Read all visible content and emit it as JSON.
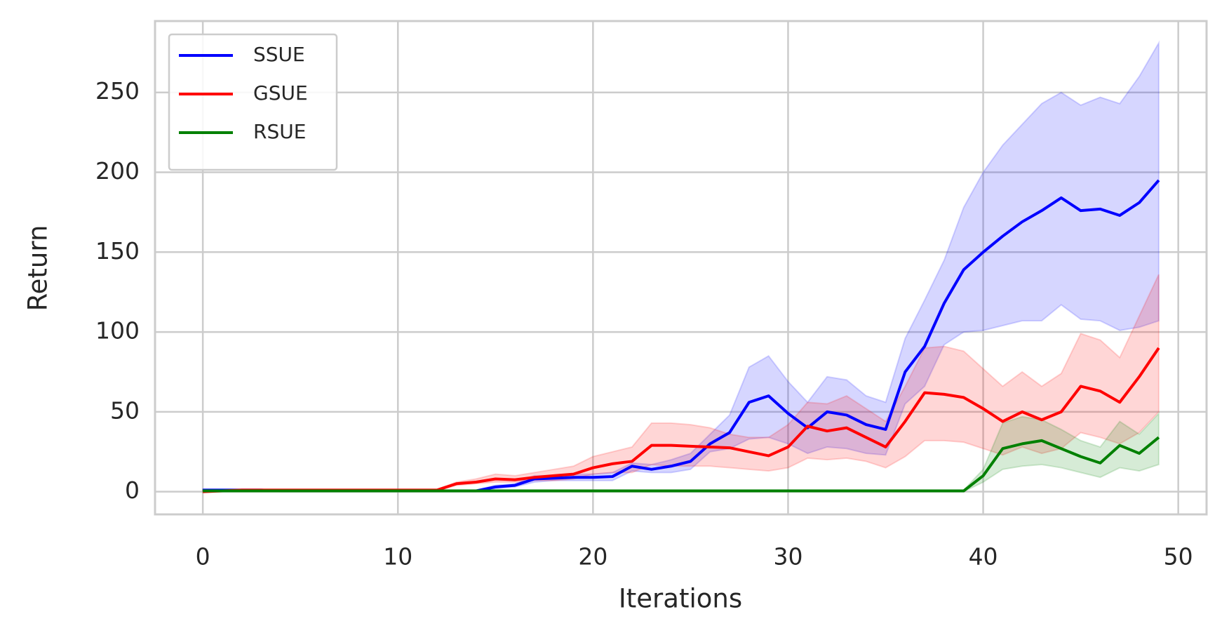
{
  "chart_data": {
    "type": "line",
    "xlabel": "Iterations",
    "ylabel": "Return",
    "x": [
      0,
      1,
      2,
      3,
      4,
      5,
      6,
      7,
      8,
      9,
      10,
      11,
      12,
      13,
      14,
      15,
      16,
      17,
      18,
      19,
      20,
      21,
      22,
      23,
      24,
      25,
      26,
      27,
      28,
      29,
      30,
      31,
      32,
      33,
      34,
      35,
      36,
      37,
      38,
      39,
      40,
      41,
      42,
      43,
      44,
      45,
      46,
      47,
      48,
      49
    ],
    "series": [
      {
        "name": "SSUE",
        "color": "#0000ff",
        "values": [
          1,
          1,
          1,
          1,
          0.5,
          0.5,
          0.5,
          0.5,
          0.5,
          0.5,
          0.5,
          0.5,
          0.5,
          0.5,
          0.5,
          3,
          4,
          8,
          8.5,
          9,
          9,
          9.5,
          16,
          14,
          16,
          19,
          30,
          37,
          56,
          60,
          49,
          40,
          50,
          48,
          42,
          39,
          75,
          91,
          118,
          139,
          150,
          160,
          169,
          176,
          184,
          176,
          177,
          173,
          181,
          195
        ],
        "upper": [
          1.5,
          1.5,
          1.5,
          1.5,
          1,
          1,
          1,
          1,
          1,
          1,
          1,
          1,
          1,
          1,
          1,
          4,
          5,
          10,
          10,
          11,
          11,
          12,
          18,
          17,
          20,
          24,
          36,
          48,
          78,
          85,
          69,
          56,
          72,
          70,
          60,
          56,
          96,
          120,
          145,
          178,
          200,
          217,
          230,
          243,
          250,
          242,
          247,
          243,
          260,
          281
        ],
        "lower": [
          0.5,
          0.5,
          0.5,
          0.5,
          0,
          0,
          0,
          0,
          0,
          0,
          0,
          0,
          0,
          0,
          0,
          2,
          3,
          6,
          7,
          7,
          7,
          7,
          13,
          12,
          12,
          14,
          25,
          27,
          33,
          34,
          30,
          24,
          28,
          27,
          24,
          23,
          55,
          66,
          92,
          100,
          101,
          104,
          107,
          107,
          117,
          108,
          107,
          101,
          103,
          107
        ]
      },
      {
        "name": "GSUE",
        "color": "#ff0000",
        "values": [
          0,
          0.5,
          1,
          1,
          1,
          1,
          1,
          1,
          1,
          1,
          1,
          1,
          1,
          5,
          6,
          8,
          7.5,
          9,
          10,
          11,
          15,
          17.5,
          19,
          29,
          29,
          28.5,
          28,
          27.5,
          25,
          22.5,
          28,
          41,
          38,
          40,
          34,
          28,
          44,
          62,
          61,
          59,
          52,
          44,
          50,
          45,
          50,
          66,
          63,
          56,
          72,
          90
        ],
        "upper": [
          0.5,
          1,
          1.5,
          1.5,
          1.5,
          1.5,
          1.5,
          1.5,
          1.5,
          1.5,
          1.5,
          1.5,
          1.5,
          6,
          8,
          11,
          10,
          12,
          14,
          16,
          22,
          25,
          28,
          43,
          43,
          42,
          40,
          36,
          34,
          34,
          42,
          56,
          55,
          60,
          52,
          44,
          66,
          90,
          91,
          88,
          77,
          66,
          75,
          66,
          74,
          99,
          95,
          84,
          110,
          136
        ],
        "lower": [
          -0.5,
          0,
          0.5,
          0.5,
          0.5,
          0.5,
          0.5,
          0.5,
          0.5,
          0.5,
          0.5,
          0.5,
          0.5,
          4,
          5,
          6,
          6,
          7,
          7,
          8,
          11,
          12,
          12,
          17,
          16,
          16,
          16,
          15,
          14,
          13,
          15,
          21,
          20,
          21,
          19,
          15,
          22,
          32,
          32,
          31,
          27,
          23,
          28,
          24,
          27,
          37,
          34,
          30,
          37,
          50
        ]
      },
      {
        "name": "RSUE",
        "color": "#008000",
        "values": [
          0.5,
          0.5,
          0.5,
          0.5,
          0.5,
          0.5,
          0.5,
          0.5,
          0.5,
          0.5,
          0.5,
          0.5,
          0.5,
          0.5,
          0.5,
          0.5,
          0.5,
          0.5,
          0.5,
          0.5,
          0.5,
          0.5,
          0.5,
          0.5,
          0.5,
          0.5,
          0.5,
          0.5,
          0.5,
          0.5,
          0.5,
          0.5,
          0.5,
          0.5,
          0.5,
          0.5,
          0.5,
          0.5,
          0.5,
          0.5,
          10,
          27,
          30,
          32,
          27,
          22,
          18,
          29,
          24,
          34
        ],
        "upper": [
          1,
          1,
          1,
          1,
          1,
          1,
          1,
          1,
          1,
          1,
          1,
          1,
          1,
          1,
          1,
          1,
          1,
          1,
          1,
          1,
          1,
          1,
          1,
          1,
          1,
          1,
          1,
          1,
          1,
          1,
          1,
          1,
          1,
          1,
          1,
          1,
          1,
          1,
          1,
          1,
          14,
          43,
          47,
          45,
          39,
          32,
          28,
          44,
          36,
          49
        ],
        "lower": [
          0,
          0,
          0,
          0,
          0,
          0,
          0,
          0,
          0,
          0,
          0,
          0,
          0,
          0,
          0,
          0,
          0,
          0,
          0,
          0,
          0,
          0,
          0,
          0,
          0,
          0,
          0,
          0,
          0,
          0,
          0,
          0,
          0,
          0,
          0,
          0,
          0,
          0,
          0,
          0,
          6,
          14,
          16,
          17,
          15,
          12,
          9,
          15,
          13,
          17
        ]
      }
    ],
    "xlim": [
      -2.45,
      51.45
    ],
    "ylim": [
      -14.2,
      294.7
    ],
    "xticks": [
      0,
      10,
      20,
      30,
      40,
      50
    ],
    "yticks": [
      0,
      50,
      100,
      150,
      200,
      250
    ],
    "grid": true,
    "legend": "upper left"
  }
}
